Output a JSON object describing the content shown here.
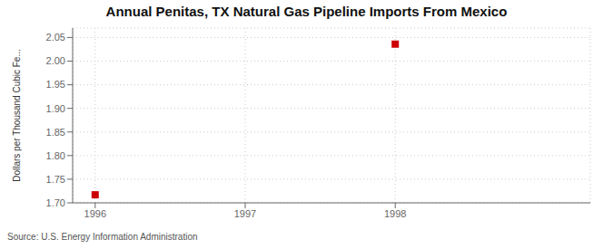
{
  "chart_data": {
    "type": "scatter",
    "title": "Annual Penitas, TX Natural Gas Pipeline Imports From Mexico",
    "ylabel": "Dollars per Thousand Cubic Fe...",
    "source": "Source: U.S. Energy Information Administration",
    "x": [
      1996,
      1998
    ],
    "values": [
      1.717,
      2.036
    ],
    "color": "#CC0000",
    "marker": "square",
    "xlim": [
      1995.85,
      1999.3
    ],
    "ylim": [
      1.7,
      2.07
    ],
    "xticks": [
      1996,
      1997,
      1998
    ],
    "yticks": [
      {
        "value": 1.7,
        "label": "1.70"
      },
      1.75,
      {
        "value": 1.8,
        "label": "1.80"
      },
      1.85,
      {
        "value": 1.9,
        "label": "1.90"
      },
      1.95,
      {
        "value": 2.0,
        "label": "2.00"
      },
      2.05
    ],
    "grid": true
  }
}
